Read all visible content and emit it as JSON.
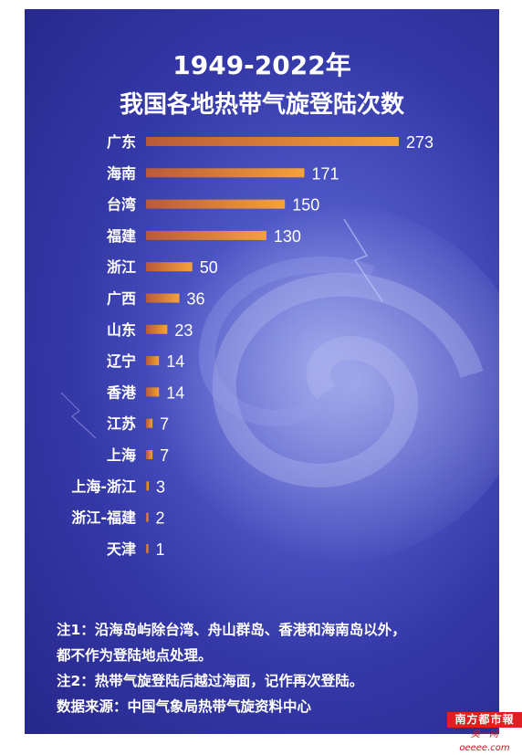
{
  "title_line1": "1949-2022年",
  "title_line2": "我国各地热带气旋登陆次数",
  "chart_data": {
    "type": "bar",
    "orientation": "horizontal",
    "title": "1949-2022年 我国各地热带气旋登陆次数",
    "categories": [
      "广东",
      "海南",
      "台湾",
      "福建",
      "浙江",
      "广西",
      "山东",
      "辽宁",
      "香港",
      "江苏",
      "上海",
      "上海-浙江",
      "浙江-福建",
      "天津"
    ],
    "values": [
      273,
      171,
      150,
      130,
      50,
      36,
      23,
      14,
      14,
      7,
      7,
      3,
      2,
      1
    ],
    "xlim": [
      0,
      273
    ],
    "grid": false,
    "legend": "none",
    "bar_color_start": "#b85a3a",
    "bar_color_end": "#f5a23a"
  },
  "notes": {
    "note1_line1": "注1：沿海岛屿除台湾、舟山群岛、香港和海南岛以外，",
    "note1_line2": "都不作为登陆地点处理。",
    "note2": "注2：热带气旋登陆后越过海面，记作再次登陆。",
    "source": "数据来源：中国气象局热带气旋资料中心"
  },
  "logo": {
    "name": "南方都市報",
    "watermark": "奥一网oeeee.com"
  }
}
